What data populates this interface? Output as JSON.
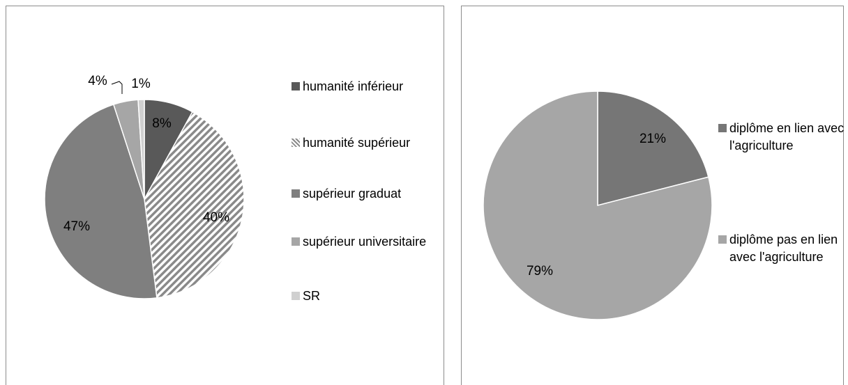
{
  "chart_data": [
    {
      "type": "pie",
      "categories": [
        "humanité inférieur",
        "humanité supérieur",
        "supérieur graduat",
        "supérieur universitaire",
        "SR"
      ],
      "values": [
        8,
        40,
        47,
        4,
        1
      ],
      "value_labels": [
        "8%",
        "40%",
        "47%",
        "4%",
        "1%"
      ],
      "colors": [
        "#595959",
        "#7f7f7f",
        "#7f7f7f",
        "#a6a6a6",
        "#d0d0d0"
      ],
      "hatch": [
        false,
        true,
        false,
        false,
        false
      ],
      "legend": "right"
    },
    {
      "type": "pie",
      "categories": [
        "diplôme en lien avec l'agriculture",
        "diplôme pas en lien avec l'agriculture"
      ],
      "values": [
        21,
        79
      ],
      "value_labels": [
        "21%",
        "79%"
      ],
      "colors": [
        "#767676",
        "#a6a6a6"
      ],
      "hatch": [
        false,
        false
      ],
      "legend": "right"
    }
  ]
}
